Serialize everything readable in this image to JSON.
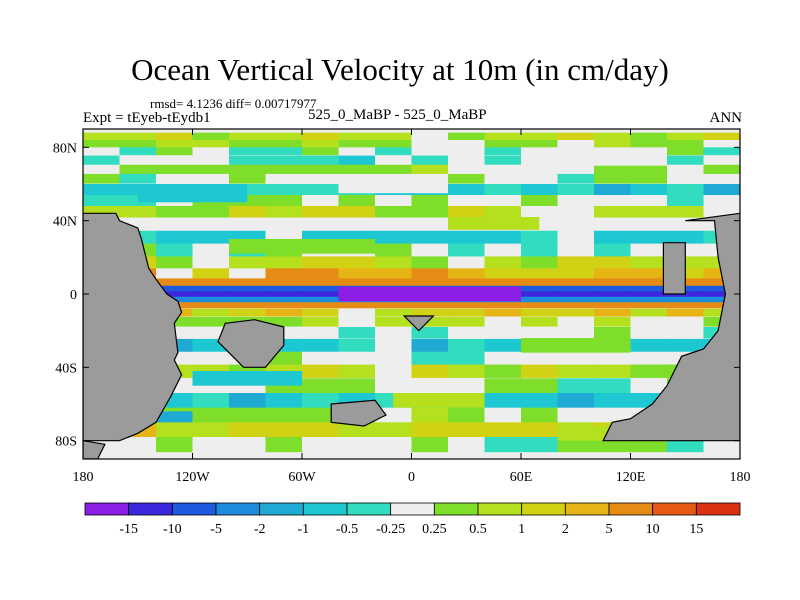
{
  "chart_data": {
    "type": "heatmap",
    "title": "Ocean Vertical Velocity at 10m (in cm/day)",
    "stats": {
      "rmsd": "4.1236",
      "diff": "0.00717977",
      "line": "rmsd= 4.1236 diff= 0.00717977"
    },
    "left_label": "Expt = tEyeb-tEydb1",
    "center_label": "525_0_MaBP - 525_0_MaBP",
    "right_label": "ANN",
    "xaxis": {
      "range": [
        -180,
        180
      ],
      "ticks": [
        -180,
        -120,
        -60,
        0,
        60,
        120,
        180
      ],
      "tick_labels": [
        "180",
        "120W",
        "60W",
        "0",
        "60E",
        "120E",
        "180"
      ]
    },
    "yaxis": {
      "range": [
        -90,
        90
      ],
      "ticks": [
        80,
        40,
        0,
        -40,
        -80
      ],
      "tick_labels": [
        "80N",
        "40N",
        "0",
        "40S",
        "80S"
      ]
    },
    "colorbar": {
      "labels": [
        "-15",
        "-10",
        "-5",
        "-2",
        "-1",
        "-0.5",
        "-0.25",
        "0.25",
        "0.5",
        "1",
        "2",
        "5",
        "10",
        "15"
      ],
      "colors": [
        "#8c1ee6",
        "#3c28dc",
        "#1e5ade",
        "#1e8cdc",
        "#1eaad2",
        "#1ec8d2",
        "#32dcbe",
        "#eeeeee",
        "#7ede2a",
        "#b4e01e",
        "#d2d214",
        "#e6b414",
        "#e68c14",
        "#e65a14",
        "#dc3214"
      ]
    },
    "land_color": "#9b9b9b",
    "bands": [
      {
        "lat": 86,
        "h": 4,
        "level": 9
      },
      {
        "lat": 82,
        "h": 4,
        "level": 8
      },
      {
        "lat": 78,
        "h": 4,
        "level": 7
      },
      {
        "lat": 73,
        "h": 5,
        "level": 6
      },
      {
        "lat": 68,
        "h": 5,
        "level": 8
      },
      {
        "lat": 63,
        "h": 5,
        "level": 7
      },
      {
        "lat": 57,
        "h": 6,
        "level": 5
      },
      {
        "lat": 51,
        "h": 6,
        "level": 7
      },
      {
        "lat": 45,
        "h": 6,
        "level": 9
      },
      {
        "lat": 38,
        "h": 7,
        "level": 7
      },
      {
        "lat": 31,
        "h": 7,
        "level": 5
      },
      {
        "lat": 24,
        "h": 7,
        "level": 7
      },
      {
        "lat": 17,
        "h": 7,
        "level": 9
      },
      {
        "lat": 11,
        "h": 6,
        "level": 11
      },
      {
        "lat": 6,
        "h": 5,
        "level": 12
      },
      {
        "lat": 3,
        "h": 3,
        "level": 2
      },
      {
        "lat": 0,
        "h": 3,
        "level": 1
      },
      {
        "lat": -3,
        "h": 3,
        "level": 3
      },
      {
        "lat": -6,
        "h": 3,
        "level": 12
      },
      {
        "lat": -10,
        "h": 4,
        "level": 10
      },
      {
        "lat": -15,
        "h": 5,
        "level": 8
      },
      {
        "lat": -21,
        "h": 6,
        "level": 7
      },
      {
        "lat": -28,
        "h": 7,
        "level": 5
      },
      {
        "lat": -35,
        "h": 7,
        "level": 7
      },
      {
        "lat": -42,
        "h": 7,
        "level": 9
      },
      {
        "lat": -50,
        "h": 8,
        "level": 7
      },
      {
        "lat": -58,
        "h": 8,
        "level": 5
      },
      {
        "lat": -66,
        "h": 8,
        "level": 8
      },
      {
        "lat": -74,
        "h": 8,
        "level": 10
      },
      {
        "lat": -82,
        "h": 8,
        "level": 7
      }
    ],
    "patches": [
      {
        "lon": [
          -40,
          20
        ],
        "lat": [
          55,
          65
        ],
        "level": 7
      },
      {
        "lon": [
          -150,
          -90
        ],
        "lat": [
          50,
          60
        ],
        "level": 5
      },
      {
        "lon": [
          60,
          140
        ],
        "lat": [
          70,
          78
        ],
        "level": 7
      },
      {
        "lon": [
          -100,
          -20
        ],
        "lat": [
          22,
          30
        ],
        "level": 8
      },
      {
        "lon": [
          60,
          120
        ],
        "lat": [
          -32,
          -24
        ],
        "level": 8
      },
      {
        "lon": [
          -120,
          -60
        ],
        "lat": [
          -50,
          -42
        ],
        "level": 5
      },
      {
        "lon": [
          -10,
          40
        ],
        "lat": [
          -62,
          -54
        ],
        "level": 9
      },
      {
        "lon": [
          80,
          130
        ],
        "lat": [
          -80,
          -72
        ],
        "level": 9
      },
      {
        "lon": [
          -160,
          -120
        ],
        "lat": [
          -70,
          -64
        ],
        "level": 4
      },
      {
        "lon": [
          20,
          70
        ],
        "lat": [
          35,
          42
        ],
        "level": 9
      }
    ],
    "equator_core": {
      "lon": [
        -40,
        60
      ],
      "lat": [
        -4,
        4
      ],
      "level": 0
    },
    "land": [
      {
        "name": "north-america",
        "poly": [
          [
            -180,
            44
          ],
          [
            -162,
            44
          ],
          [
            -160,
            40
          ],
          [
            -150,
            36
          ],
          [
            -148,
            30
          ],
          [
            -146,
            22
          ],
          [
            -144,
            14
          ],
          [
            -140,
            8
          ],
          [
            -137,
            4
          ],
          [
            -134,
            0
          ],
          [
            -128,
            -4
          ],
          [
            -126,
            -10
          ],
          [
            -130,
            -16
          ],
          [
            -128,
            -32
          ],
          [
            -130,
            -36
          ],
          [
            -126,
            -44
          ],
          [
            -132,
            -56
          ],
          [
            -140,
            -70
          ],
          [
            -150,
            -76
          ],
          [
            -160,
            -80
          ],
          [
            -180,
            -80
          ]
        ]
      },
      {
        "name": "south-america",
        "poly": [
          [
            -102,
            -16
          ],
          [
            -86,
            -14
          ],
          [
            -70,
            -18
          ],
          [
            -70,
            -28
          ],
          [
            -80,
            -40
          ],
          [
            -92,
            -40
          ],
          [
            -106,
            -26
          ]
        ]
      },
      {
        "name": "antarctic-block",
        "poly": [
          [
            -44,
            -60
          ],
          [
            -20,
            -58
          ],
          [
            -14,
            -66
          ],
          [
            -26,
            -72
          ],
          [
            -44,
            -70
          ]
        ]
      },
      {
        "name": "africa-south",
        "poly": [
          [
            -4,
            -12
          ],
          [
            12,
            -12
          ],
          [
            4,
            -20
          ]
        ]
      },
      {
        "name": "eurasia-east",
        "poly": [
          [
            150,
            40
          ],
          [
            166,
            40
          ],
          [
            168,
            20
          ],
          [
            172,
            0
          ],
          [
            168,
            -20
          ],
          [
            160,
            -30
          ],
          [
            148,
            -34
          ],
          [
            140,
            -50
          ],
          [
            132,
            -60
          ],
          [
            120,
            -68
          ],
          [
            110,
            -70
          ],
          [
            105,
            -80
          ],
          [
            180,
            -80
          ],
          [
            180,
            44
          ]
        ]
      },
      {
        "name": "island-east",
        "poly": [
          [
            138,
            28
          ],
          [
            150,
            28
          ],
          [
            150,
            0
          ],
          [
            138,
            0
          ]
        ]
      },
      {
        "name": "antarctic-peninsula",
        "poly": [
          [
            -180,
            -80
          ],
          [
            -180,
            -90
          ],
          [
            -172,
            -90
          ],
          [
            -168,
            -82
          ]
        ]
      }
    ]
  }
}
